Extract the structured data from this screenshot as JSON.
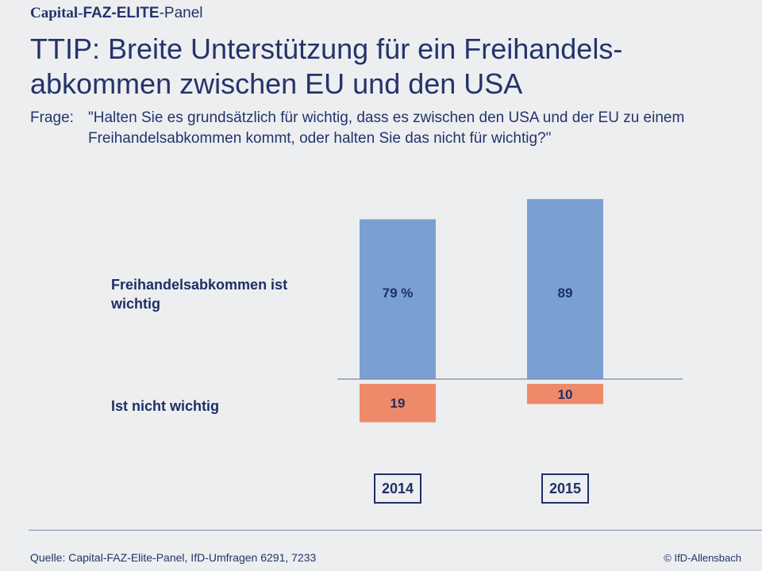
{
  "brand": {
    "part1": "Capital-",
    "part2": "FAZ-ELITE",
    "part3": "-Panel"
  },
  "title_lines": [
    "TTIP: Breite Unterstützung für ein Freihandels-",
    "abkommen zwischen EU und den USA"
  ],
  "question": {
    "label": "Frage:",
    "text": "\"Halten Sie es grundsätzlich für wichtig, dass es zwischen den USA und der EU zu einem Freihandelsabkommen kommt, oder halten Sie das nicht für wichtig?\""
  },
  "footer": {
    "source": "Quelle: Capital-FAZ-Elite-Panel, IfD-Umfragen 6291, 7233",
    "copyright": "© IfD-Allensbach"
  },
  "colors": {
    "positive": "#7a9fd2",
    "negative": "#ee8a6a",
    "text": "#24346a",
    "baseline": "#7e88a8"
  },
  "chart_data": {
    "type": "bar",
    "orientation": "diverging-vertical",
    "categories": [
      "2014",
      "2015"
    ],
    "series": [
      {
        "name": "Freihandelsabkommen ist wichtig",
        "values": [
          79,
          89
        ],
        "labels": [
          "79 %",
          "89"
        ],
        "direction": "up"
      },
      {
        "name": "Ist nicht wichtig",
        "values": [
          19,
          10
        ],
        "labels": [
          "19",
          "10"
        ],
        "direction": "down"
      }
    ],
    "unit": "%",
    "ylim": [
      0,
      100
    ]
  }
}
